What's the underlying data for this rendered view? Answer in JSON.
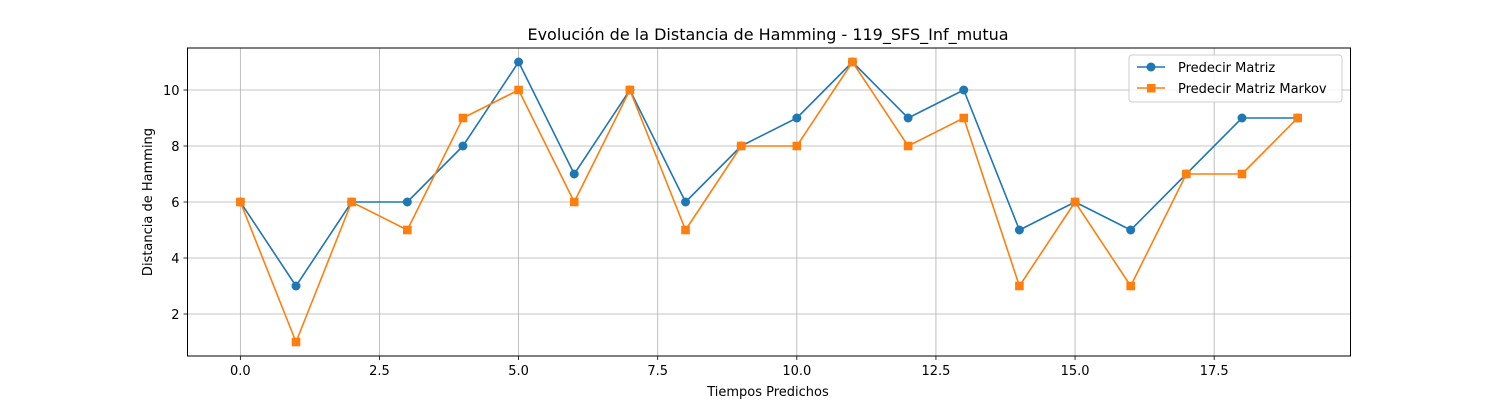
{
  "chart_data": {
    "type": "line",
    "title": "Evolución de la Distancia de Hamming - 119_SFS_Inf_mutua",
    "xlabel": "Tiempos Predichos",
    "ylabel": "Distancia de Hamming",
    "x": [
      0,
      1,
      2,
      3,
      4,
      5,
      6,
      7,
      8,
      9,
      10,
      11,
      12,
      13,
      14,
      15,
      16,
      17,
      18,
      19
    ],
    "xlim": [
      -0.95,
      19.95
    ],
    "ylim": [
      0.5,
      11.5
    ],
    "xticks": [
      0.0,
      2.5,
      5.0,
      7.5,
      10.0,
      12.5,
      15.0,
      17.5
    ],
    "xtick_labels": [
      "0.0",
      "2.5",
      "5.0",
      "7.5",
      "10.0",
      "12.5",
      "15.0",
      "17.5"
    ],
    "yticks": [
      2,
      4,
      6,
      8,
      10
    ],
    "ytick_labels": [
      "2",
      "4",
      "6",
      "8",
      "10"
    ],
    "grid": true,
    "legend_position": "top-right",
    "series": [
      {
        "name": "Predecir Matriz",
        "color": "#1f77b4",
        "marker": "circle",
        "values": [
          6,
          3,
          6,
          6,
          8,
          11,
          7,
          10,
          6,
          8,
          9,
          11,
          9,
          10,
          5,
          6,
          5,
          7,
          9,
          9
        ]
      },
      {
        "name": "Predecir Matriz Markov",
        "color": "#ff7f0e",
        "marker": "square",
        "values": [
          6,
          1,
          6,
          5,
          9,
          10,
          6,
          10,
          5,
          8,
          8,
          11,
          8,
          9,
          3,
          6,
          3,
          7,
          7,
          9
        ]
      }
    ]
  }
}
